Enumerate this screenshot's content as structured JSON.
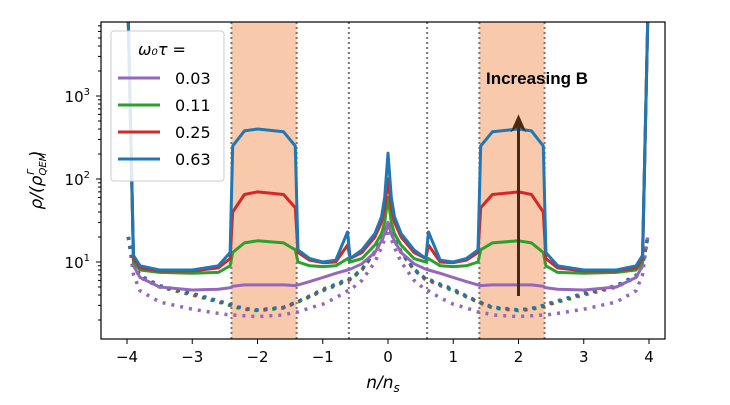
{
  "chart_data": {
    "type": "line",
    "title": "",
    "xlabel": {
      "main": "n/n",
      "sub": "s"
    },
    "ylabel": {
      "main": "ρ/(ρ",
      "sup": "Γ",
      "sub": "QEM",
      "close": ")"
    },
    "xlim": [
      -4.4,
      4.4
    ],
    "ylim": [
      1.18,
      7800
    ],
    "yscale": "log",
    "xticks": [
      "−4",
      "−3",
      "−2",
      "−1",
      "0",
      "1",
      "2",
      "3",
      "4"
    ],
    "xtick_values": [
      -4,
      -3,
      -2,
      -1,
      0,
      1,
      2,
      3,
      4
    ],
    "yticks": [
      {
        "base": "10",
        "exp": "1",
        "value": 10
      },
      {
        "base": "10",
        "exp": "2",
        "value": 100
      },
      {
        "base": "10",
        "exp": "3",
        "value": 1000
      }
    ],
    "grid": false,
    "shaded_regions": [
      [
        -2.4,
        -1.4
      ],
      [
        1.4,
        2.4
      ]
    ],
    "shade_color": "#f8c9aa",
    "vertical_dotted_lines": [
      -2.4,
      -1.4,
      -0.6,
      0.6,
      1.4,
      2.4
    ],
    "legend": {
      "title": "ω₀τ =",
      "placement": "top-left"
    },
    "x": [
      -3.98,
      -3.9,
      -3.8,
      -3.5,
      -3,
      -2.6,
      -2.42,
      -2.38,
      -2.2,
      -2,
      -1.6,
      -1.42,
      -1.38,
      -1.2,
      -1,
      -0.8,
      -0.62,
      -0.58,
      -0.4,
      -0.2,
      -0.1,
      -0.05,
      0,
      0.05,
      0.1,
      0.2,
      0.4,
      0.58,
      0.62,
      0.8,
      1,
      1.2,
      1.38,
      1.42,
      1.6,
      2,
      2.2,
      2.38,
      2.42,
      2.6,
      3,
      3.5,
      3.8,
      3.9,
      3.98
    ],
    "series": [
      {
        "name": "0.03",
        "color": "#9467bd",
        "style": "solid",
        "values": [
          8000,
          9,
          6.5,
          5,
          4.6,
          4.7,
          4.9,
          5.1,
          5.3,
          5.3,
          5.3,
          5.2,
          5.3,
          5.8,
          6.5,
          7.3,
          8,
          8.2,
          9.5,
          13,
          18,
          22,
          30,
          22,
          18,
          13,
          9.5,
          8.2,
          8,
          7.3,
          6.5,
          5.8,
          5.3,
          5.2,
          5.3,
          5.3,
          5.3,
          5.1,
          4.9,
          4.7,
          4.6,
          5,
          6.5,
          9,
          8000
        ]
      },
      {
        "name": "0.11",
        "color": "#2ca02c",
        "style": "solid",
        "values": [
          8000,
          10,
          8,
          7.5,
          7.3,
          7.5,
          9,
          13,
          17,
          18,
          17,
          14,
          10,
          9,
          8.8,
          9,
          11,
          10,
          11,
          16,
          22,
          30,
          60,
          30,
          22,
          16,
          11,
          10,
          11,
          9,
          8.8,
          9,
          10,
          14,
          17,
          18,
          17,
          13,
          9,
          7.5,
          7.3,
          7.5,
          8,
          10,
          8000
        ]
      },
      {
        "name": "0.25",
        "color": "#d62728",
        "style": "solid",
        "values": [
          8000,
          11,
          8.5,
          7.8,
          7.8,
          8.5,
          11,
          40,
          65,
          70,
          65,
          45,
          13,
          10.5,
          9.8,
          10,
          16,
          11,
          13,
          20,
          30,
          45,
          100,
          45,
          30,
          20,
          13,
          11,
          16,
          10,
          9.8,
          10.5,
          13,
          45,
          65,
          70,
          65,
          40,
          11,
          8.5,
          7.8,
          7.8,
          8.5,
          11,
          8000
        ]
      },
      {
        "name": "0.63",
        "color": "#1f77b4",
        "style": "solid",
        "values": [
          8000,
          12,
          9,
          8,
          8,
          9,
          13,
          250,
          380,
          400,
          370,
          250,
          14,
          11,
          10,
          10.5,
          23,
          11,
          14,
          22,
          35,
          60,
          205,
          60,
          35,
          22,
          14,
          11,
          23,
          10.5,
          10,
          11,
          14,
          250,
          370,
          400,
          380,
          250,
          13,
          9,
          8,
          8,
          9,
          12,
          8000
        ]
      },
      {
        "color": "#9467bd",
        "style": "dotted",
        "values": [
          20,
          7,
          4.5,
          3.3,
          2.7,
          2.4,
          2.3,
          2.3,
          2.25,
          2.2,
          2.3,
          2.5,
          2.5,
          2.8,
          3.1,
          3.7,
          4.5,
          4.6,
          6,
          10,
          15,
          19,
          25,
          19,
          15,
          10,
          6,
          4.6,
          4.5,
          3.7,
          3.1,
          2.8,
          2.5,
          2.5,
          2.3,
          2.2,
          2.25,
          2.3,
          2.3,
          2.4,
          2.7,
          3.3,
          4.5,
          7,
          20
        ]
      },
      {
        "color": "#2ca02c",
        "style": "dotted",
        "values": [
          20,
          9,
          6.5,
          5,
          4,
          3.3,
          3,
          2.9,
          2.7,
          2.6,
          2.8,
          3.2,
          3.3,
          3.8,
          4.5,
          5.2,
          6,
          6.1,
          8,
          13,
          18,
          22,
          28,
          22,
          18,
          13,
          8,
          6.1,
          6,
          5.2,
          4.5,
          3.8,
          3.3,
          3.2,
          2.8,
          2.6,
          2.7,
          2.9,
          3,
          3.3,
          4,
          5,
          6.5,
          9,
          20
        ]
      },
      {
        "color": "#d62728",
        "style": "dotted",
        "values": [
          20,
          9.2,
          6.7,
          5.1,
          4.1,
          3.35,
          3.05,
          2.95,
          2.72,
          2.62,
          2.82,
          3.22,
          3.32,
          3.85,
          4.6,
          5.3,
          6.1,
          6.2,
          8.1,
          13.2,
          18.5,
          23,
          29,
          23,
          18.5,
          13.2,
          8.1,
          6.2,
          6.1,
          5.3,
          4.6,
          3.85,
          3.32,
          3.22,
          2.82,
          2.62,
          2.72,
          2.95,
          3.05,
          3.35,
          4.1,
          5.1,
          6.7,
          9.2,
          20
        ]
      },
      {
        "color": "#1f77b4",
        "style": "dotted",
        "values": [
          20,
          9.4,
          6.9,
          5.2,
          4.2,
          3.4,
          3.1,
          3,
          2.75,
          2.65,
          2.85,
          3.25,
          3.35,
          3.9,
          4.7,
          5.4,
          6.2,
          6.3,
          8.2,
          13.4,
          19,
          24,
          30,
          24,
          19,
          13.4,
          8.2,
          6.3,
          6.2,
          5.4,
          4.7,
          3.9,
          3.35,
          3.25,
          2.85,
          2.65,
          2.75,
          3,
          3.1,
          3.4,
          4.2,
          5.2,
          6.9,
          9.4,
          20
        ]
      }
    ],
    "annotation": {
      "text": "Increasing B",
      "arrow_x": 2,
      "arrow_from": 3.9,
      "arrow_to": 600,
      "color": "#4a2a16"
    }
  }
}
